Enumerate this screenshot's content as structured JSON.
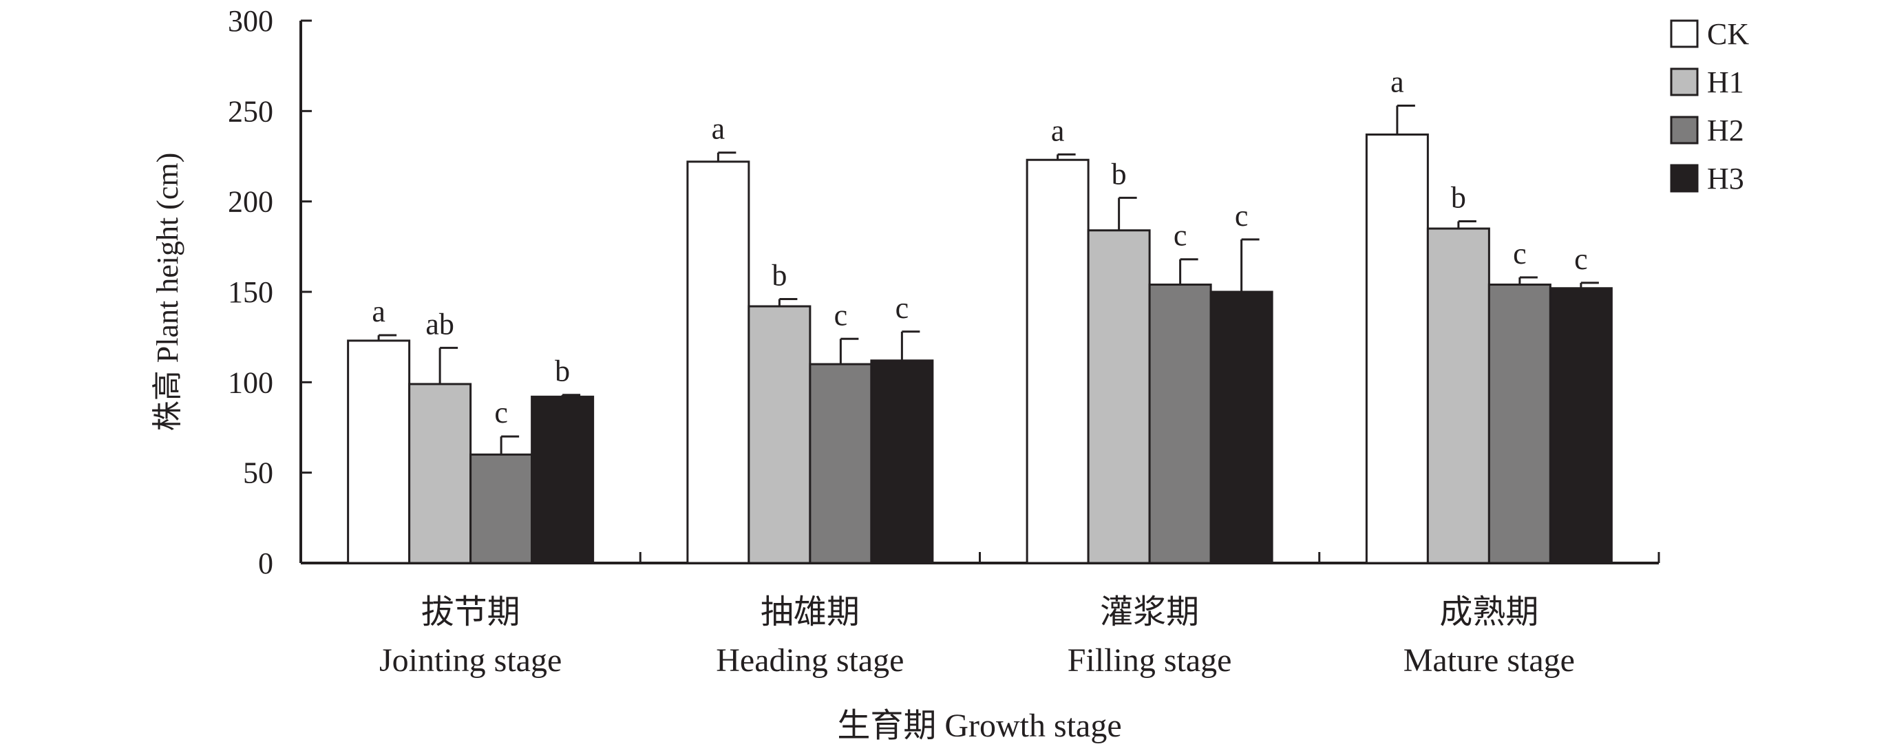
{
  "chart_data": {
    "type": "bar",
    "ylabel": "株高 Plant height (cm)",
    "xlabel": "生育期 Growth stage",
    "ylim": [
      0,
      300
    ],
    "yticks": [
      "0",
      "50",
      "100",
      "150",
      "200",
      "250",
      "300"
    ],
    "categories": [
      {
        "zh": "拔节期",
        "en": "Jointing stage"
      },
      {
        "zh": "抽雄期",
        "en": "Heading stage"
      },
      {
        "zh": "灌浆期",
        "en": "Filling stage"
      },
      {
        "zh": "成熟期",
        "en": "Mature stage"
      }
    ],
    "series": [
      {
        "name": "CK",
        "color": "#ffffff",
        "values": [
          123,
          222,
          223,
          237
        ],
        "errors": [
          3,
          5,
          3,
          16
        ],
        "letters": [
          "a",
          "a",
          "a",
          "a"
        ]
      },
      {
        "name": "H1",
        "color": "#bdbdbd",
        "values": [
          99,
          142,
          184,
          185
        ],
        "errors": [
          20,
          4,
          18,
          4
        ],
        "letters": [
          "ab",
          "b",
          "b",
          "b"
        ]
      },
      {
        "name": "H2",
        "color": "#7d7c7c",
        "values": [
          60,
          110,
          154,
          154
        ],
        "errors": [
          10,
          14,
          14,
          4
        ],
        "letters": [
          "c",
          "c",
          "c",
          "c"
        ]
      },
      {
        "name": "H3",
        "color": "#231f20",
        "values": [
          92,
          112,
          150,
          152
        ],
        "errors": [
          1,
          16,
          29,
          3
        ],
        "letters": [
          "b",
          "c",
          "c",
          "c"
        ]
      }
    ],
    "legend_position": "top-right",
    "grid": false
  }
}
